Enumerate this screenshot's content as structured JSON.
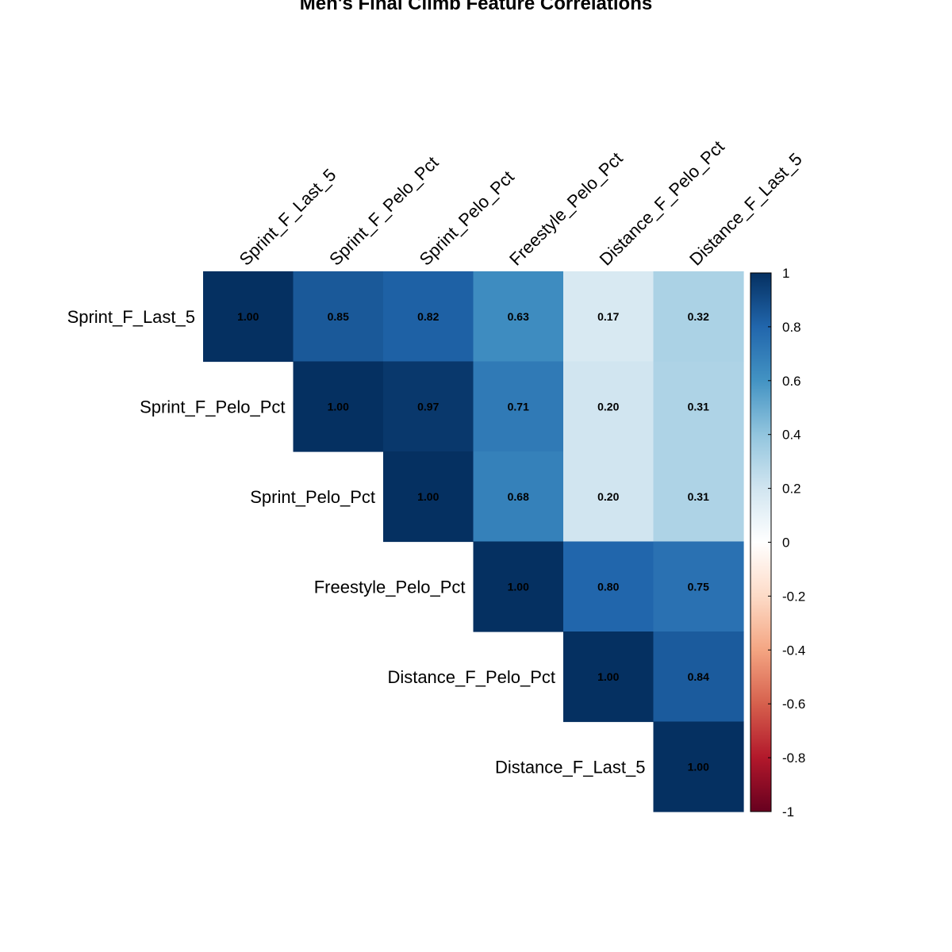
{
  "chart_data": {
    "type": "heatmap",
    "title": "Men's Final Climb Feature Correlations",
    "variables": [
      "Sprint_F_Last_5",
      "Sprint_F_Pelo_Pct",
      "Sprint_Pelo_Pct",
      "Freestyle_Pelo_Pct",
      "Distance_F_Pelo_Pct",
      "Distance_F_Last_5"
    ],
    "layout": "upper-triangle",
    "matrix": [
      [
        1.0,
        0.85,
        0.82,
        0.63,
        0.17,
        0.32
      ],
      [
        null,
        1.0,
        0.97,
        0.71,
        0.2,
        0.31
      ],
      [
        null,
        null,
        1.0,
        0.68,
        0.2,
        0.31
      ],
      [
        null,
        null,
        null,
        1.0,
        0.8,
        0.75
      ],
      [
        null,
        null,
        null,
        null,
        1.0,
        0.84
      ],
      [
        null,
        null,
        null,
        null,
        null,
        1.0
      ]
    ],
    "cell_label_format": "2 decimals",
    "colorbar": {
      "range": [
        -1,
        1
      ],
      "ticks": [
        1,
        0.8,
        0.6,
        0.4,
        0.2,
        0,
        -0.2,
        -0.4,
        -0.6,
        -0.8,
        -1
      ],
      "tick_labels": [
        "1",
        "0.8",
        "0.6",
        "0.4",
        "0.2",
        "0",
        "-0.2",
        "-0.4",
        "-0.6",
        "-0.8",
        "-1"
      ],
      "palette": [
        "#67001F",
        "#B2182B",
        "#D6604D",
        "#F4A582",
        "#FDDBC7",
        "#FFFFFF",
        "#D1E5F0",
        "#92C5DE",
        "#4393C3",
        "#2166AC",
        "#053061"
      ]
    },
    "grid": false,
    "legend_position": "right"
  }
}
